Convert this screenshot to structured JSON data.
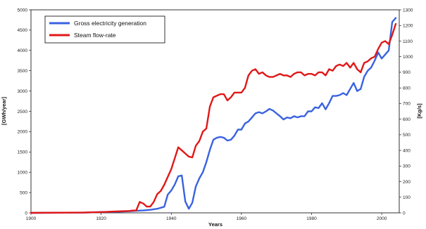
{
  "chart_data": {
    "type": "line",
    "xlabel": "Years",
    "ylabel_left": "[GWh/year]",
    "ylabel_right": "[Kg/s]",
    "xlim": [
      1900,
      2005
    ],
    "ylim_left": [
      0,
      5000
    ],
    "ylim_right": [
      0,
      1300
    ],
    "x_ticks": [
      "1900",
      "1920",
      "1940",
      "1960",
      "1980",
      "2000"
    ],
    "y_left_ticks": [
      "0",
      "500",
      "1000",
      "1500",
      "2000",
      "2500",
      "3000",
      "3500",
      "4000",
      "4500",
      "5000"
    ],
    "y_right_ticks": [
      "0",
      "100",
      "200",
      "300",
      "400",
      "500",
      "600",
      "700",
      "800",
      "900",
      "1000",
      "1100",
      "1200",
      "1300"
    ],
    "grid": false,
    "legend_position": "top-left",
    "series": [
      {
        "name": "Gross electricity generation",
        "axis": "left",
        "color": "#3a62e0",
        "x": [
          1900,
          1915,
          1920,
          1925,
          1928,
          1930,
          1932,
          1934,
          1936,
          1938,
          1939,
          1940,
          1941,
          1942,
          1943,
          1944,
          1945,
          1946,
          1947,
          1948,
          1949,
          1950,
          1951,
          1952,
          1953,
          1954,
          1955,
          1956,
          1957,
          1958,
          1959,
          1960,
          1961,
          1962,
          1963,
          1964,
          1965,
          1966,
          1967,
          1968,
          1969,
          1970,
          1971,
          1972,
          1973,
          1974,
          1975,
          1976,
          1977,
          1978,
          1979,
          1980,
          1981,
          1982,
          1983,
          1984,
          1985,
          1986,
          1987,
          1988,
          1989,
          1990,
          1991,
          1992,
          1993,
          1994,
          1995,
          1996,
          1997,
          1998,
          1999,
          2000,
          2001,
          2002,
          2003,
          2004
        ],
        "values": [
          0,
          5,
          20,
          30,
          40,
          50,
          60,
          75,
          100,
          150,
          450,
          550,
          700,
          900,
          920,
          280,
          100,
          250,
          650,
          850,
          1000,
          1250,
          1550,
          1800,
          1850,
          1870,
          1850,
          1780,
          1800,
          1900,
          2050,
          2050,
          2200,
          2250,
          2350,
          2450,
          2480,
          2450,
          2500,
          2560,
          2520,
          2450,
          2380,
          2300,
          2350,
          2330,
          2380,
          2350,
          2380,
          2380,
          2500,
          2500,
          2600,
          2580,
          2700,
          2550,
          2700,
          2880,
          2880,
          2900,
          2950,
          2900,
          3050,
          3200,
          3000,
          3050,
          3350,
          3500,
          3580,
          3750,
          3950,
          3800,
          3900,
          4000,
          4700,
          4800
        ]
      },
      {
        "name": "Steam flow-rate",
        "axis": "right",
        "color": "#e01818",
        "x": [
          1900,
          1915,
          1920,
          1925,
          1928,
          1929,
          1930,
          1931,
          1932,
          1933,
          1934,
          1935,
          1936,
          1937,
          1938,
          1939,
          1940,
          1941,
          1942,
          1943,
          1944,
          1945,
          1946,
          1947,
          1948,
          1949,
          1950,
          1951,
          1952,
          1953,
          1954,
          1955,
          1956,
          1957,
          1958,
          1959,
          1960,
          1961,
          1962,
          1963,
          1964,
          1965,
          1966,
          1967,
          1968,
          1969,
          1970,
          1971,
          1972,
          1973,
          1974,
          1975,
          1976,
          1977,
          1978,
          1979,
          1980,
          1981,
          1982,
          1983,
          1984,
          1985,
          1986,
          1987,
          1988,
          1989,
          1990,
          1991,
          1992,
          1993,
          1994,
          1995,
          1996,
          1997,
          1998,
          1999,
          2000,
          2001,
          2002,
          2003,
          2004
        ],
        "values": [
          0,
          2,
          5,
          10,
          12,
          15,
          15,
          70,
          60,
          40,
          40,
          70,
          120,
          140,
          180,
          230,
          280,
          350,
          420,
          400,
          380,
          360,
          355,
          430,
          460,
          520,
          540,
          680,
          740,
          750,
          760,
          760,
          720,
          740,
          770,
          770,
          770,
          800,
          880,
          910,
          920,
          890,
          900,
          880,
          870,
          870,
          880,
          890,
          880,
          880,
          870,
          890,
          900,
          900,
          880,
          890,
          890,
          880,
          900,
          900,
          880,
          920,
          910,
          940,
          950,
          940,
          960,
          930,
          960,
          920,
          900,
          960,
          970,
          990,
          1000,
          1050,
          1090,
          1100,
          1080,
          1140,
          1210
        ]
      }
    ]
  }
}
